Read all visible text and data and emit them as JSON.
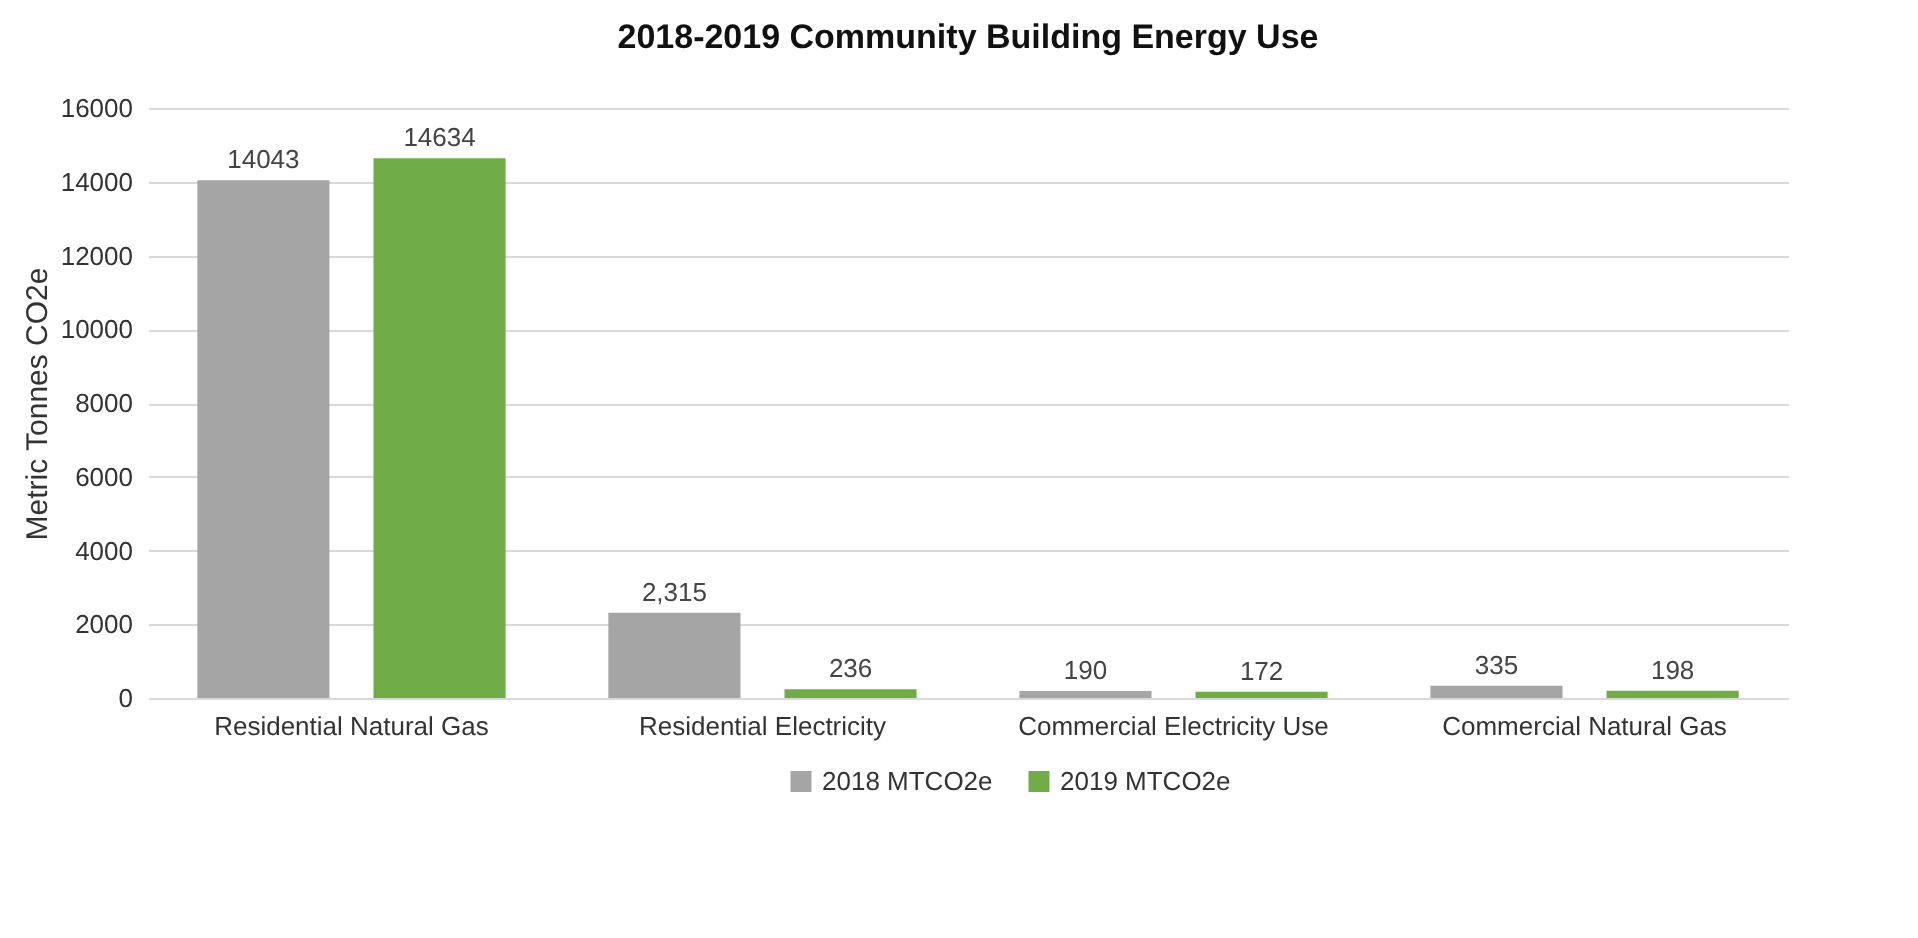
{
  "chart_data": {
    "type": "bar",
    "title": "2018-2019 Community Building Energy Use",
    "ylabel": "Metric Tonnes CO2e",
    "categories": [
      "Residential Natural Gas",
      "Residential Electricity",
      "Commercial Electricity Use",
      "Commercial Natural Gas"
    ],
    "series": [
      {
        "name": "2018 MTCO2e",
        "color": "#a5a5a5",
        "values": [
          14043,
          2315,
          190,
          335
        ],
        "value_labels": [
          "14043",
          "2,315",
          "190",
          "335"
        ]
      },
      {
        "name": "2019 MTCO2e",
        "color": "#70ad47",
        "values": [
          14634,
          236,
          172,
          198
        ],
        "value_labels": [
          "14634",
          "236",
          "172",
          "198"
        ]
      }
    ],
    "ylim": [
      0,
      16000
    ],
    "yticks": [
      0,
      2000,
      4000,
      6000,
      8000,
      10000,
      12000,
      14000,
      16000
    ],
    "grid": "y",
    "legend": "bottom"
  }
}
